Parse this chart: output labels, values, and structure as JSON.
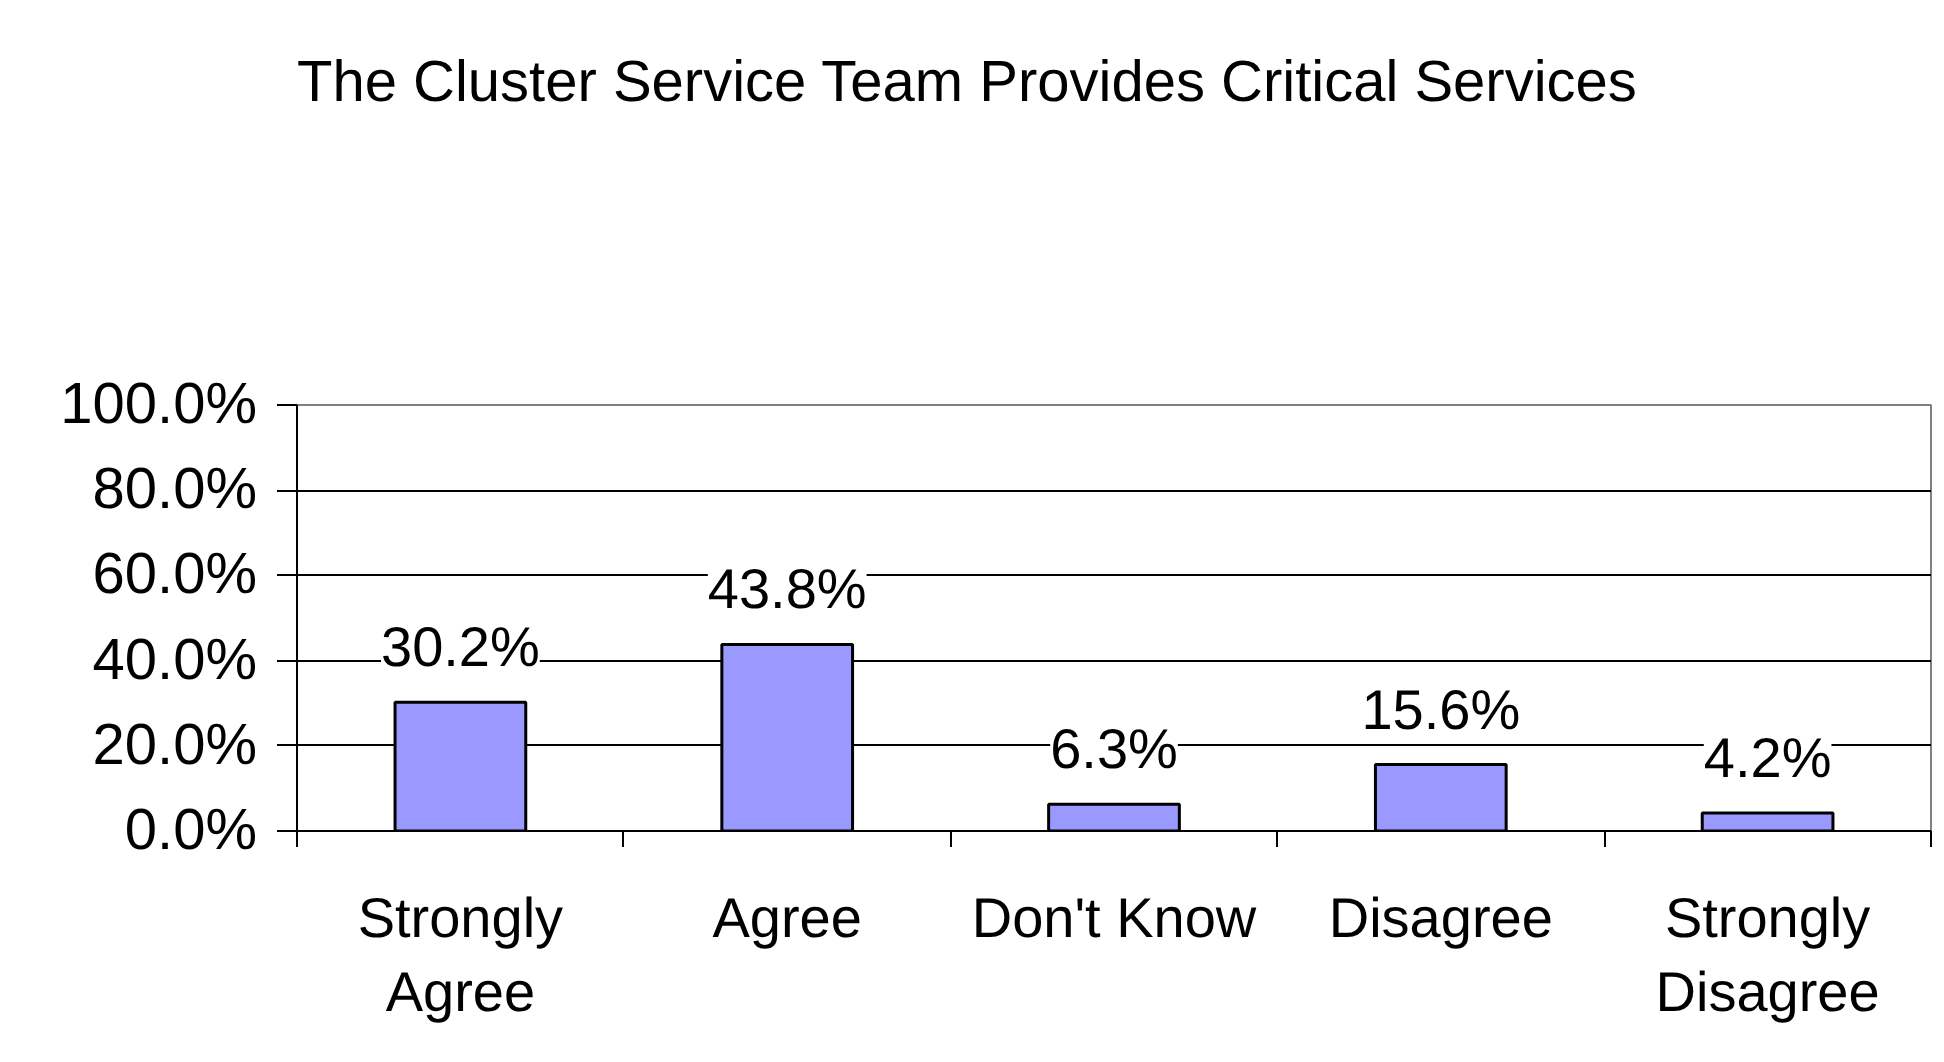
{
  "chart_data": {
    "type": "bar",
    "title": "The Cluster Service Team Provides Critical Services",
    "categories": [
      "Strongly Agree",
      "Agree",
      "Don't Know",
      "Disagree",
      "Strongly Disagree"
    ],
    "values": [
      30.2,
      43.8,
      6.3,
      15.6,
      4.2
    ],
    "value_labels": [
      "30.2%",
      "43.8%",
      "6.3%",
      "15.6%",
      "4.2%"
    ],
    "color": "#9999ff",
    "ylim": [
      0,
      100
    ],
    "yticks": [
      {
        "value": 0,
        "label": "0.0%"
      },
      {
        "value": 20,
        "label": "20.0%"
      },
      {
        "value": 40,
        "label": "40.0%"
      },
      {
        "value": 60,
        "label": "60.0%"
      },
      {
        "value": 80,
        "label": "80.0%"
      },
      {
        "value": 100,
        "label": "100.0%"
      }
    ],
    "grid": "y"
  }
}
